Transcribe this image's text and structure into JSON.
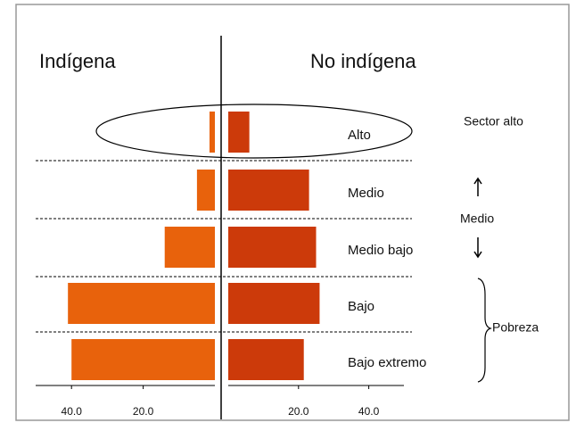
{
  "chart_data": {
    "type": "butterfly-bar",
    "categories": [
      "Alto",
      "Medio",
      "Medio bajo",
      "Bajo",
      "Bajo extremo"
    ],
    "series": [
      {
        "name": "Indígena",
        "color": "#e8620c",
        "values": [
          1.5,
          5,
          14,
          41,
          40
        ],
        "xlim": [
          0,
          50
        ],
        "xticks": [
          {
            "value": 40,
            "label": "40.0"
          },
          {
            "value": 20,
            "label": "20.0"
          }
        ]
      },
      {
        "name": "No indígena",
        "color": "#cc3a0a",
        "values": [
          6,
          23,
          25,
          26,
          21.5
        ],
        "xlim": [
          0,
          50
        ],
        "xticks": [
          {
            "value": 20,
            "label": "20.0"
          },
          {
            "value": 40,
            "label": "40.0"
          }
        ]
      }
    ],
    "annotations": [
      "Sector alto",
      "Medio",
      "Pobreza"
    ]
  }
}
